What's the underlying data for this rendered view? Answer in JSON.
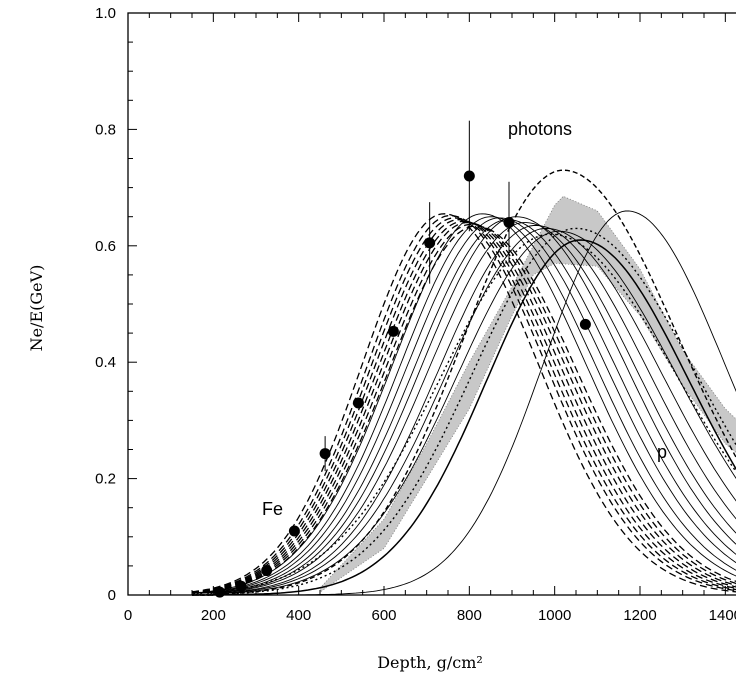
{
  "chart_data": {
    "type": "line",
    "xlabel": "Depth, g/cm²",
    "ylabel": "Ne/E(GeV)",
    "xlim": [
      0,
      1500
    ],
    "ylim": [
      0,
      1.0
    ],
    "x_ticks": [
      "0",
      "200",
      "400",
      "600",
      "800",
      "1000",
      "1200",
      "1400"
    ],
    "y_ticks": [
      "0",
      "0.2",
      "0.4",
      "0.6",
      "0.8",
      "1.0"
    ],
    "annotations": [
      "photons",
      "Fe",
      "p"
    ],
    "band": {
      "upper": [
        [
          450,
          0.012
        ],
        [
          600,
          0.13
        ],
        [
          700,
          0.26
        ],
        [
          800,
          0.4
        ],
        [
          900,
          0.53
        ],
        [
          1000,
          0.67
        ],
        [
          1020,
          0.685
        ],
        [
          1100,
          0.66
        ],
        [
          1200,
          0.56
        ],
        [
          1300,
          0.42
        ],
        [
          1400,
          0.32
        ],
        [
          1500,
          0.25
        ]
      ],
      "lower": [
        [
          450,
          0.005
        ],
        [
          600,
          0.08
        ],
        [
          700,
          0.2
        ],
        [
          800,
          0.32
        ],
        [
          900,
          0.48
        ],
        [
          950,
          0.55
        ],
        [
          1000,
          0.57
        ],
        [
          1100,
          0.565
        ],
        [
          1200,
          0.48
        ],
        [
          1300,
          0.36
        ],
        [
          1400,
          0.26
        ],
        [
          1500,
          0.2
        ]
      ]
    },
    "series_style": {
      "Fe": "dashed",
      "p": "solid",
      "photons": "dotted-dashed",
      "band_color": "#c8c8c8"
    },
    "curves_fe": [
      {
        "xmax": 740,
        "nmax": 0.655,
        "w": 205
      },
      {
        "xmax": 755,
        "nmax": 0.652,
        "w": 208
      },
      {
        "xmax": 765,
        "nmax": 0.648,
        "w": 210
      },
      {
        "xmax": 775,
        "nmax": 0.645,
        "w": 212
      },
      {
        "xmax": 785,
        "nmax": 0.642,
        "w": 214
      },
      {
        "xmax": 795,
        "nmax": 0.64,
        "w": 216
      },
      {
        "xmax": 805,
        "nmax": 0.637,
        "w": 218
      },
      {
        "xmax": 815,
        "nmax": 0.634,
        "w": 220
      }
    ],
    "curves_p": [
      {
        "xmax": 830,
        "nmax": 0.655,
        "w": 225
      },
      {
        "xmax": 850,
        "nmax": 0.65,
        "w": 228
      },
      {
        "xmax": 870,
        "nmax": 0.648,
        "w": 232
      },
      {
        "xmax": 890,
        "nmax": 0.645,
        "w": 235
      },
      {
        "xmax": 910,
        "nmax": 0.65,
        "w": 238
      },
      {
        "xmax": 930,
        "nmax": 0.64,
        "w": 242
      },
      {
        "xmax": 955,
        "nmax": 0.635,
        "w": 245
      },
      {
        "xmax": 980,
        "nmax": 0.63,
        "w": 250
      },
      {
        "xmax": 1010,
        "nmax": 0.625,
        "w": 255
      },
      {
        "xmax": 1060,
        "nmax": 0.61,
        "w": 235
      },
      {
        "xmax": 1170,
        "nmax": 0.66,
        "w": 210
      }
    ],
    "curves_photon": [
      {
        "xmax": 1020,
        "nmax": 0.73,
        "w": 250
      },
      {
        "xmax": 990,
        "nmax": 0.62,
        "w": 275
      },
      {
        "xmax": 1050,
        "nmax": 0.63,
        "w": 260
      }
    ],
    "points": [
      {
        "x": 215,
        "y": 0.005,
        "err": 0
      },
      {
        "x": 265,
        "y": 0.015,
        "err": 0
      },
      {
        "x": 325,
        "y": 0.042,
        "err": 0
      },
      {
        "x": 390,
        "y": 0.11,
        "err": 0
      },
      {
        "x": 462,
        "y": 0.243,
        "err": 0.03
      },
      {
        "x": 540,
        "y": 0.33,
        "err": 0
      },
      {
        "x": 622,
        "y": 0.453,
        "err": 0
      },
      {
        "x": 707,
        "y": 0.605,
        "err": 0.07
      },
      {
        "x": 800,
        "y": 0.72,
        "err": 0.095
      },
      {
        "x": 893,
        "y": 0.64,
        "err": 0.07
      },
      {
        "x": 1072,
        "y": 0.465,
        "err": 0
      }
    ]
  }
}
